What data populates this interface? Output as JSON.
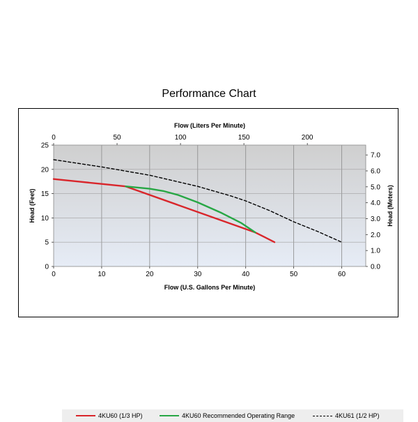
{
  "title": "Performance Chart",
  "chart_data": {
    "type": "line",
    "x_top_label": "Flow (Liters Per Minute)",
    "x_top_ticks": [
      "0",
      "50",
      "100",
      "150",
      "200"
    ],
    "x_top_tick_values": [
      0,
      50,
      100,
      150,
      200
    ],
    "xlabel": "Flow (U.S. Gallons Per Minute)",
    "x_ticks": [
      "0",
      "10",
      "20",
      "30",
      "40",
      "50",
      "60"
    ],
    "x_tick_values": [
      0,
      10,
      20,
      30,
      40,
      50,
      60
    ],
    "xlim": [
      0,
      65
    ],
    "ylabel": "Head (Feet)",
    "y_ticks": [
      "0",
      "5",
      "10",
      "15",
      "20",
      "25"
    ],
    "y_tick_values": [
      0,
      5,
      10,
      15,
      20,
      25
    ],
    "ylim": [
      0,
      25
    ],
    "y_right_label": "Head (Meters)",
    "y_right_ticks": [
      "0.0",
      "1.0",
      "2.0",
      "3.0",
      "4.0",
      "5.0",
      "6.0",
      "7.0"
    ],
    "y_right_tick_values": [
      0,
      1,
      2,
      3,
      4,
      5,
      6,
      7
    ],
    "y_right_lim": [
      0,
      7.62
    ],
    "grid": true,
    "legend_position": "bottom",
    "series": [
      {
        "name": "4KU60 (1/3 HP)",
        "color": "#d9262b",
        "style": "solid",
        "points": [
          [
            0,
            18
          ],
          [
            5,
            17.5
          ],
          [
            10,
            17
          ],
          [
            15,
            16.5
          ],
          [
            42,
            7
          ],
          [
            44,
            6
          ],
          [
            46,
            5
          ]
        ]
      },
      {
        "name": "4KU60 Recommended Operating Range",
        "color": "#28a745",
        "style": "solid",
        "points": [
          [
            15,
            16.5
          ],
          [
            20,
            16
          ],
          [
            23,
            15.5
          ],
          [
            26,
            14.7
          ],
          [
            30,
            13.2
          ],
          [
            35,
            11
          ],
          [
            39,
            9
          ],
          [
            42,
            7
          ]
        ]
      },
      {
        "name": "4KU61 (1/2 HP)",
        "color": "#000000",
        "style": "dashed",
        "points": [
          [
            0,
            22
          ],
          [
            10,
            20.5
          ],
          [
            20,
            18.8
          ],
          [
            30,
            16.5
          ],
          [
            37,
            14.5
          ],
          [
            40,
            13.5
          ],
          [
            45,
            11.5
          ],
          [
            50,
            9.2
          ],
          [
            55,
            7.2
          ],
          [
            60,
            5
          ]
        ]
      }
    ]
  }
}
